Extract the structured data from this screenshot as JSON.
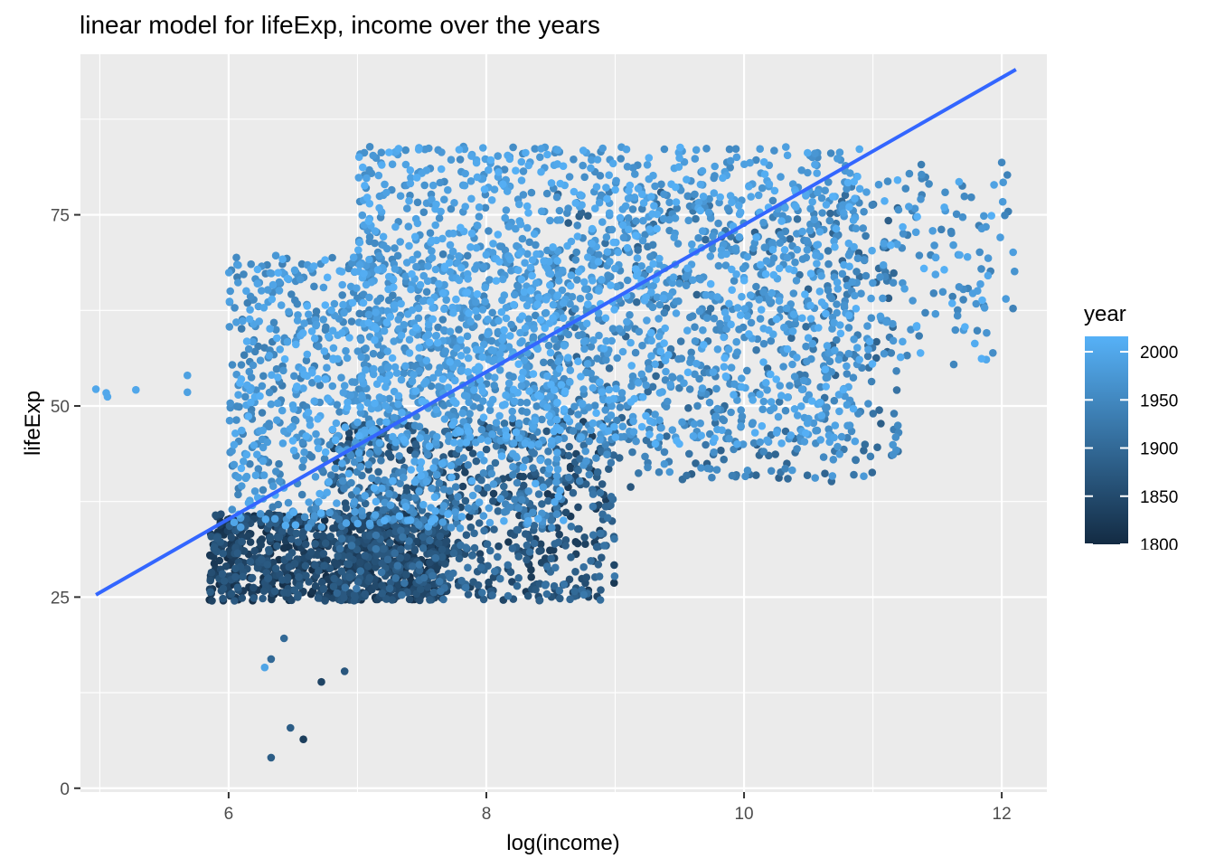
{
  "chart_data": {
    "type": "scatter",
    "title": "linear model for lifeExp, income over the years",
    "xlabel": "log(income)",
    "ylabel": "lifeExp",
    "xlim": [
      4.85,
      12.35
    ],
    "ylim": [
      -0.5,
      96
    ],
    "x_ticks": [
      6,
      8,
      10,
      12
    ],
    "y_ticks": [
      0,
      25,
      50,
      75
    ],
    "grid": true,
    "background": "#EBEBEB",
    "legend": {
      "title": "year",
      "placement": "right",
      "color_min": "#132B43",
      "color_max": "#56B1F7",
      "range": [
        1800,
        2016
      ],
      "ticks": [
        1800,
        1850,
        1900,
        1950,
        2000
      ]
    },
    "regression_line": {
      "color": "#3366FF",
      "x": [
        4.97,
        12.11
      ],
      "y": [
        25.3,
        94.0
      ]
    },
    "point_clusters": [
      {
        "x_range": [
          5.85,
          7.7
        ],
        "y_range": [
          24.5,
          36
        ],
        "year_range": [
          1800,
          1880
        ],
        "count": 950
      },
      {
        "x_range": [
          6.8,
          9.0
        ],
        "y_range": [
          24.5,
          48
        ],
        "year_range": [
          1820,
          1925
        ],
        "count": 700
      },
      {
        "x_range": [
          6.0,
          8.6
        ],
        "y_range": [
          34,
          70
        ],
        "year_range": [
          1930,
          2016
        ],
        "count": 1100
      },
      {
        "x_range": [
          7.0,
          10.9
        ],
        "y_range": [
          45,
          84
        ],
        "year_range": [
          1950,
          2016
        ],
        "count": 1600
      },
      {
        "x_range": [
          8.5,
          11.2
        ],
        "y_range": [
          40,
          78
        ],
        "year_range": [
          1880,
          1980
        ],
        "count": 500
      },
      {
        "x_range": [
          10.8,
          12.1
        ],
        "y_range": [
          55,
          82
        ],
        "year_range": [
          1930,
          2016
        ],
        "count": 150
      }
    ],
    "outlier_points": [
      {
        "x": 4.97,
        "y": 52.2,
        "year": 2000
      },
      {
        "x": 5.05,
        "y": 51.7,
        "year": 2000
      },
      {
        "x": 5.06,
        "y": 51.2,
        "year": 2000
      },
      {
        "x": 5.28,
        "y": 52.1,
        "year": 2000
      },
      {
        "x": 5.68,
        "y": 51.8,
        "year": 1990
      },
      {
        "x": 5.68,
        "y": 54.0,
        "year": 1990
      },
      {
        "x": 6.28,
        "y": 15.8,
        "year": 1995
      },
      {
        "x": 6.33,
        "y": 16.9,
        "year": 1900
      },
      {
        "x": 6.43,
        "y": 19.6,
        "year": 1900
      },
      {
        "x": 6.48,
        "y": 7.9,
        "year": 1880
      },
      {
        "x": 6.33,
        "y": 4.0,
        "year": 1880
      },
      {
        "x": 6.58,
        "y": 6.4,
        "year": 1830
      },
      {
        "x": 6.72,
        "y": 13.9,
        "year": 1840
      },
      {
        "x": 6.9,
        "y": 15.3,
        "year": 1870
      },
      {
        "x": 8.99,
        "y": 32.9,
        "year": 1880
      },
      {
        "x": 9.12,
        "y": 39.4,
        "year": 1870
      },
      {
        "x": 7.98,
        "y": 24.7,
        "year": 1880
      }
    ]
  }
}
